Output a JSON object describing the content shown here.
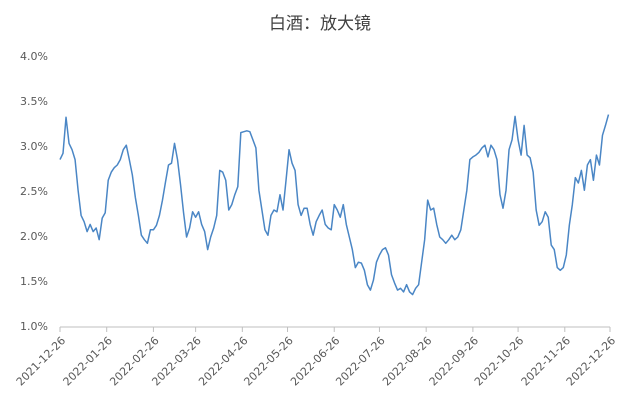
{
  "chart_data": {
    "type": "line",
    "title": "白酒：放大镜",
    "color": "#4a86c5",
    "grid": false,
    "x": [
      "2021-12-26",
      "2021-12-28",
      "2021-12-30",
      "2022-01-01",
      "2022-01-03",
      "2022-01-05",
      "2022-01-07",
      "2022-01-09",
      "2022-01-11",
      "2022-01-13",
      "2022-01-15",
      "2022-01-17",
      "2022-01-19",
      "2022-01-21",
      "2022-01-23",
      "2022-01-25",
      "2022-01-27",
      "2022-01-29",
      "2022-01-31",
      "2022-02-02",
      "2022-02-04",
      "2022-02-06",
      "2022-02-08",
      "2022-02-10",
      "2022-02-12",
      "2022-02-14",
      "2022-02-16",
      "2022-02-18",
      "2022-02-20",
      "2022-02-22",
      "2022-02-24",
      "2022-02-26",
      "2022-02-28",
      "2022-03-02",
      "2022-03-04",
      "2022-03-06",
      "2022-03-08",
      "2022-03-10",
      "2022-03-12",
      "2022-03-14",
      "2022-03-16",
      "2022-03-18",
      "2022-03-20",
      "2022-03-22",
      "2022-03-24",
      "2022-03-26",
      "2022-03-28",
      "2022-03-30",
      "2022-04-01",
      "2022-04-03",
      "2022-04-05",
      "2022-04-07",
      "2022-04-09",
      "2022-04-11",
      "2022-04-13",
      "2022-04-15",
      "2022-04-17",
      "2022-04-19",
      "2022-04-21",
      "2022-04-23",
      "2022-04-25",
      "2022-04-27",
      "2022-04-29",
      "2022-05-01",
      "2022-05-03",
      "2022-05-05",
      "2022-05-07",
      "2022-05-09",
      "2022-05-11",
      "2022-05-13",
      "2022-05-15",
      "2022-05-17",
      "2022-05-19",
      "2022-05-21",
      "2022-05-23",
      "2022-05-25",
      "2022-05-27",
      "2022-05-29",
      "2022-05-31",
      "2022-06-02",
      "2022-06-04",
      "2022-06-06",
      "2022-06-08",
      "2022-06-10",
      "2022-06-12",
      "2022-06-14",
      "2022-06-16",
      "2022-06-18",
      "2022-06-20",
      "2022-06-22",
      "2022-06-24",
      "2022-06-26",
      "2022-06-28",
      "2022-06-30",
      "2022-07-02",
      "2022-07-04",
      "2022-07-06",
      "2022-07-08",
      "2022-07-10",
      "2022-07-12",
      "2022-07-14",
      "2022-07-16",
      "2022-07-18",
      "2022-07-20",
      "2022-07-22",
      "2022-07-24",
      "2022-07-26",
      "2022-07-28",
      "2022-07-30",
      "2022-08-01",
      "2022-08-03",
      "2022-08-05",
      "2022-08-07",
      "2022-08-09",
      "2022-08-11",
      "2022-08-13",
      "2022-08-15",
      "2022-08-17",
      "2022-08-19",
      "2022-08-21",
      "2022-08-23",
      "2022-08-25",
      "2022-08-27",
      "2022-08-29",
      "2022-08-31",
      "2022-09-02",
      "2022-09-04",
      "2022-09-06",
      "2022-09-08",
      "2022-09-10",
      "2022-09-12",
      "2022-09-14",
      "2022-09-16",
      "2022-09-18",
      "2022-09-20",
      "2022-09-22",
      "2022-09-24",
      "2022-09-26",
      "2022-09-28",
      "2022-09-30",
      "2022-10-02",
      "2022-10-04",
      "2022-10-06",
      "2022-10-08",
      "2022-10-10",
      "2022-10-12",
      "2022-10-14",
      "2022-10-16",
      "2022-10-18",
      "2022-10-20",
      "2022-10-22",
      "2022-10-24",
      "2022-10-26",
      "2022-10-28",
      "2022-10-30",
      "2022-11-01",
      "2022-11-03",
      "2022-11-05",
      "2022-11-07",
      "2022-11-09",
      "2022-11-11",
      "2022-11-13",
      "2022-11-15",
      "2022-11-17",
      "2022-11-19",
      "2022-11-21",
      "2022-11-23",
      "2022-11-25",
      "2022-11-27",
      "2022-11-29",
      "2022-12-01",
      "2022-12-03",
      "2022-12-05",
      "2022-12-07",
      "2022-12-09",
      "2022-12-11",
      "2022-12-13",
      "2022-12-15",
      "2022-12-17",
      "2022-12-19",
      "2022-12-21",
      "2022-12-23",
      "2022-12-25"
    ],
    "values": [
      2.86,
      2.93,
      3.33,
      3.04,
      2.97,
      2.86,
      2.52,
      2.24,
      2.17,
      2.06,
      2.14,
      2.06,
      2.1,
      1.97,
      2.21,
      2.27,
      2.63,
      2.72,
      2.77,
      2.8,
      2.86,
      2.97,
      3.02,
      2.86,
      2.69,
      2.44,
      2.24,
      2.02,
      1.97,
      1.93,
      2.08,
      2.08,
      2.13,
      2.24,
      2.41,
      2.61,
      2.8,
      2.82,
      3.04,
      2.86,
      2.58,
      2.27,
      2.0,
      2.1,
      2.28,
      2.22,
      2.28,
      2.14,
      2.06,
      1.86,
      2.0,
      2.1,
      2.24,
      2.74,
      2.72,
      2.63,
      2.3,
      2.36,
      2.47,
      2.56,
      3.16,
      3.17,
      3.18,
      3.17,
      3.08,
      2.99,
      2.52,
      2.3,
      2.08,
      2.02,
      2.24,
      2.3,
      2.28,
      2.47,
      2.3,
      2.63,
      2.97,
      2.82,
      2.74,
      2.36,
      2.24,
      2.32,
      2.32,
      2.14,
      2.02,
      2.17,
      2.24,
      2.3,
      2.14,
      2.1,
      2.08,
      2.36,
      2.3,
      2.22,
      2.36,
      2.14,
      2.0,
      1.86,
      1.66,
      1.72,
      1.71,
      1.63,
      1.47,
      1.41,
      1.52,
      1.72,
      1.8,
      1.86,
      1.88,
      1.8,
      1.58,
      1.49,
      1.41,
      1.43,
      1.39,
      1.47,
      1.39,
      1.36,
      1.43,
      1.47,
      1.72,
      1.97,
      2.41,
      2.3,
      2.32,
      2.14,
      2.0,
      1.97,
      1.93,
      1.97,
      2.02,
      1.97,
      2.0,
      2.08,
      2.3,
      2.52,
      2.86,
      2.89,
      2.91,
      2.94,
      2.99,
      3.02,
      2.89,
      3.02,
      2.97,
      2.86,
      2.47,
      2.32,
      2.52,
      2.97,
      3.08,
      3.34,
      3.08,
      2.91,
      3.24,
      2.91,
      2.88,
      2.72,
      2.3,
      2.13,
      2.17,
      2.28,
      2.22,
      1.91,
      1.86,
      1.66,
      1.63,
      1.66,
      1.8,
      2.13,
      2.36,
      2.66,
      2.6,
      2.74,
      2.52,
      2.8,
      2.86,
      2.63,
      2.91,
      2.8,
      3.13,
      3.24,
      3.36
    ],
    "xlim": [
      "2021-12-26",
      "2022-12-26"
    ],
    "xticks": [
      "2021-12-26",
      "2022-01-26",
      "2022-02-26",
      "2022-03-26",
      "2022-04-26",
      "2022-05-26",
      "2022-06-26",
      "2022-07-26",
      "2022-08-26",
      "2022-09-26",
      "2022-10-26",
      "2022-11-26",
      "2022-12-26"
    ],
    "ylim": [
      1.0,
      4.0
    ],
    "yticks": [
      {
        "value": 1.0,
        "label": "1.0%"
      },
      {
        "value": 1.5,
        "label": "1.5%"
      },
      {
        "value": 2.0,
        "label": "2.0%"
      },
      {
        "value": 2.5,
        "label": "2.5%"
      },
      {
        "value": 3.0,
        "label": "3.0%"
      },
      {
        "value": 3.5,
        "label": "3.5%"
      },
      {
        "value": 4.0,
        "label": "4.0%"
      }
    ]
  }
}
